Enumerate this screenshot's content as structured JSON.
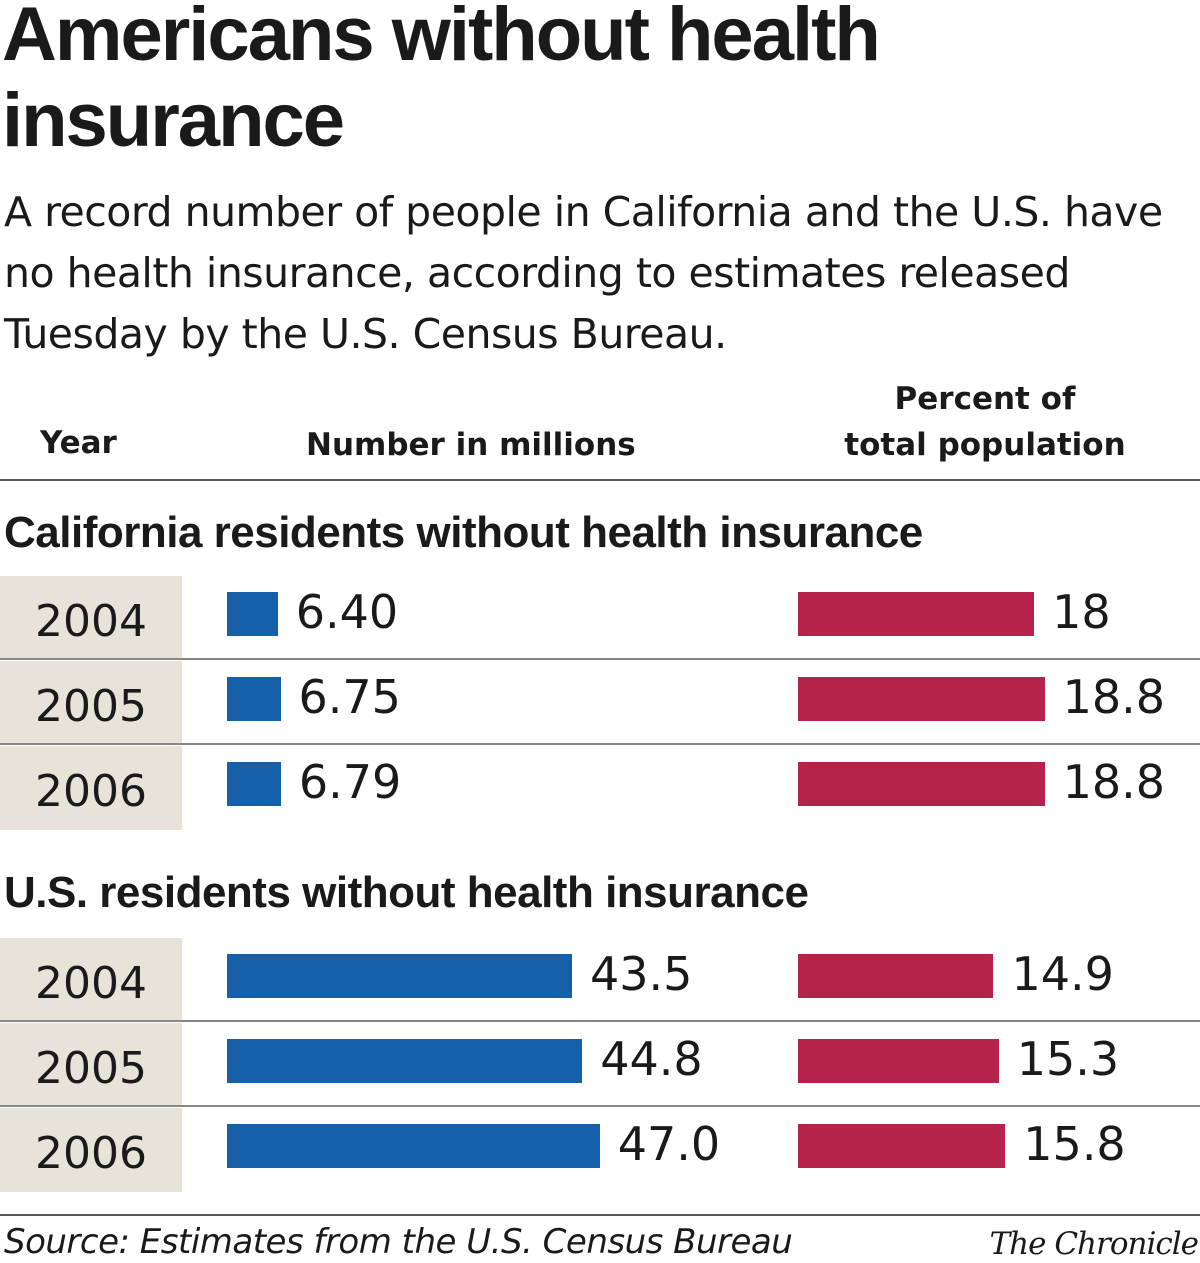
{
  "chart_data": {
    "type": "bar",
    "title": "Americans without health insurance",
    "subtitle": "A record number of people in California and the U.S. have no health insurance, according to estimates released Tuesday by the U.S. Census Bureau.",
    "column_headers": {
      "year": "Year",
      "number": "Number in millions",
      "percent_line1": "Percent of",
      "percent_line2": "total population"
    },
    "colors": {
      "number": "#1560a8",
      "percent": "#b5234a",
      "year_bg": "#e8e3d8"
    },
    "groups": [
      {
        "name": "California residents without health insurance",
        "rows": [
          {
            "year": "2004",
            "number": 6.4,
            "number_label": "6.40",
            "percent": 18,
            "percent_label": "18"
          },
          {
            "year": "2005",
            "number": 6.75,
            "number_label": "6.75",
            "percent": 18.8,
            "percent_label": "18.8"
          },
          {
            "year": "2006",
            "number": 6.79,
            "number_label": "6.79",
            "percent": 18.8,
            "percent_label": "18.8"
          }
        ]
      },
      {
        "name": "U.S. residents without health insurance",
        "rows": [
          {
            "year": "2004",
            "number": 43.5,
            "number_label": "43.5",
            "percent": 14.9,
            "percent_label": "14.9"
          },
          {
            "year": "2005",
            "number": 44.8,
            "number_label": "44.8",
            "percent": 15.3,
            "percent_label": "15.3"
          },
          {
            "year": "2006",
            "number": 47.0,
            "number_label": "47.0",
            "percent": 15.8,
            "percent_label": "15.8"
          }
        ]
      }
    ],
    "source": "Source: Estimates from the U.S. Census Bureau",
    "credit": "The Chronicle"
  }
}
